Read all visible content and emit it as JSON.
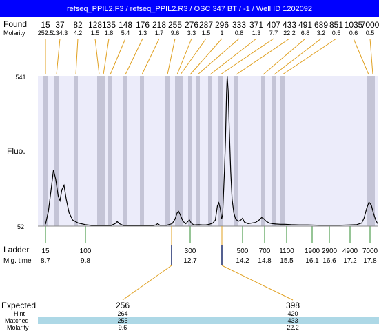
{
  "window_title": "refseq_PPIL2.F3 / refseq_PPIL2.R3 / OSC 347 BT / -1 / Well ID 1202092",
  "labels": {
    "found": "Found",
    "molarity": "Molarity",
    "fluo": "Fluo.",
    "ladder": "Ladder",
    "mig_time": "Mig. time",
    "expected": "Expected",
    "hint": "Hint",
    "matched": "Matched",
    "molarity_bottom": "Molarity"
  },
  "colors": {
    "title_bar": "#0000ff",
    "plot_bg": "#ececfa",
    "band": "#c4c4d6",
    "connector": "#e0a020",
    "ladder_tick": "#2e8b2e",
    "matched_row": "#add8e6",
    "trace": "#000000"
  },
  "chart_data": {
    "type": "line",
    "y_axis": {
      "top_label": "541",
      "bottom_label": "52",
      "ylim": [
        52,
        541
      ]
    },
    "found_peaks": [
      {
        "size": "15",
        "molarity": "252.5"
      },
      {
        "size": "37",
        "molarity": "134.3"
      },
      {
        "size": "82",
        "molarity": "4.2"
      },
      {
        "size": "128",
        "molarity": "1.5"
      },
      {
        "size": "135",
        "molarity": "1.8"
      },
      {
        "size": "148",
        "molarity": "5.4"
      },
      {
        "size": "176",
        "molarity": "1.3"
      },
      {
        "size": "218",
        "molarity": "1.7"
      },
      {
        "size": "255",
        "molarity": "9.6"
      },
      {
        "size": "276",
        "molarity": "3.3"
      },
      {
        "size": "287",
        "molarity": "1.5"
      },
      {
        "size": "296",
        "molarity": "1"
      },
      {
        "size": "333",
        "molarity": "0.8"
      },
      {
        "size": "371",
        "molarity": "1.3"
      },
      {
        "size": "407",
        "molarity": "7.7"
      },
      {
        "size": "433",
        "molarity": "22.2"
      },
      {
        "size": "491",
        "molarity": "6.8"
      },
      {
        "size": "689",
        "molarity": "3.2"
      },
      {
        "size": "851",
        "molarity": "0.5"
      },
      {
        "size": "1035",
        "molarity": "0.6"
      },
      {
        "size": "7000",
        "molarity": "0.5"
      }
    ],
    "ladder": [
      {
        "size": "15",
        "time": "8.7"
      },
      {
        "size": "100",
        "time": "9.8"
      },
      {
        "size": "300",
        "time": "12.7"
      },
      {
        "size": "500",
        "time": "14.2"
      },
      {
        "size": "700",
        "time": "14.8"
      },
      {
        "size": "1100",
        "time": "15.5"
      },
      {
        "size": "1900",
        "time": "16.1"
      },
      {
        "size": "2900",
        "time": "16.6"
      },
      {
        "size": "4900",
        "time": "17.2"
      },
      {
        "size": "7000",
        "time": "17.8"
      }
    ],
    "expected": [
      {
        "expected": "256",
        "hint": "264",
        "matched": "255",
        "molarity": "9.6"
      },
      {
        "expected": "398",
        "hint": "420",
        "matched": "433",
        "molarity": "22.2"
      }
    ],
    "trace": [
      {
        "t": 8.7,
        "f": 58
      },
      {
        "t": 8.78,
        "f": 100
      },
      {
        "t": 8.86,
        "f": 175
      },
      {
        "t": 8.92,
        "f": 235
      },
      {
        "t": 8.98,
        "f": 205
      },
      {
        "t": 9.05,
        "f": 150
      },
      {
        "t": 9.1,
        "f": 135
      },
      {
        "t": 9.15,
        "f": 170
      },
      {
        "t": 9.21,
        "f": 185
      },
      {
        "t": 9.27,
        "f": 140
      },
      {
        "t": 9.35,
        "f": 95
      },
      {
        "t": 9.45,
        "f": 72
      },
      {
        "t": 9.6,
        "f": 62
      },
      {
        "t": 9.8,
        "f": 57
      },
      {
        "t": 10.0,
        "f": 54
      },
      {
        "t": 10.3,
        "f": 53
      },
      {
        "t": 10.5,
        "f": 54
      },
      {
        "t": 10.62,
        "f": 60
      },
      {
        "t": 10.68,
        "f": 67
      },
      {
        "t": 10.74,
        "f": 60
      },
      {
        "t": 10.85,
        "f": 54
      },
      {
        "t": 11.2,
        "f": 53
      },
      {
        "t": 11.6,
        "f": 53
      },
      {
        "t": 11.75,
        "f": 56
      },
      {
        "t": 11.8,
        "f": 60
      },
      {
        "t": 11.86,
        "f": 55
      },
      {
        "t": 12.05,
        "f": 55
      },
      {
        "t": 12.2,
        "f": 60
      },
      {
        "t": 12.28,
        "f": 75
      },
      {
        "t": 12.34,
        "f": 95
      },
      {
        "t": 12.38,
        "f": 100
      },
      {
        "t": 12.43,
        "f": 88
      },
      {
        "t": 12.5,
        "f": 68
      },
      {
        "t": 12.58,
        "f": 60
      },
      {
        "t": 12.64,
        "f": 68
      },
      {
        "t": 12.68,
        "f": 72
      },
      {
        "t": 12.73,
        "f": 62
      },
      {
        "t": 12.8,
        "f": 56
      },
      {
        "t": 12.95,
        "f": 57
      },
      {
        "t": 13.05,
        "f": 56
      },
      {
        "t": 13.15,
        "f": 56
      },
      {
        "t": 13.25,
        "f": 58
      },
      {
        "t": 13.35,
        "f": 62
      },
      {
        "t": 13.42,
        "f": 72
      },
      {
        "t": 13.48,
        "f": 118
      },
      {
        "t": 13.52,
        "f": 128
      },
      {
        "t": 13.56,
        "f": 110
      },
      {
        "t": 13.6,
        "f": 75
      },
      {
        "t": 13.63,
        "f": 90
      },
      {
        "t": 13.68,
        "f": 230
      },
      {
        "t": 13.71,
        "f": 330
      },
      {
        "t": 13.74,
        "f": 480
      },
      {
        "t": 13.76,
        "f": 541
      },
      {
        "t": 13.79,
        "f": 490
      },
      {
        "t": 13.82,
        "f": 370
      },
      {
        "t": 13.86,
        "f": 230
      },
      {
        "t": 13.9,
        "f": 140
      },
      {
        "t": 13.95,
        "f": 95
      },
      {
        "t": 14.0,
        "f": 75
      },
      {
        "t": 14.08,
        "f": 68
      },
      {
        "t": 14.15,
        "f": 72
      },
      {
        "t": 14.2,
        "f": 78
      },
      {
        "t": 14.25,
        "f": 65
      },
      {
        "t": 14.35,
        "f": 60
      },
      {
        "t": 14.45,
        "f": 62
      },
      {
        "t": 14.55,
        "f": 64
      },
      {
        "t": 14.65,
        "f": 72
      },
      {
        "t": 14.72,
        "f": 80
      },
      {
        "t": 14.78,
        "f": 76
      },
      {
        "t": 14.85,
        "f": 68
      },
      {
        "t": 14.95,
        "f": 62
      },
      {
        "t": 15.05,
        "f": 60
      },
      {
        "t": 15.15,
        "f": 59
      },
      {
        "t": 15.3,
        "f": 58
      },
      {
        "t": 15.45,
        "f": 58
      },
      {
        "t": 15.6,
        "f": 57
      },
      {
        "t": 15.8,
        "f": 56
      },
      {
        "t": 16.0,
        "f": 56
      },
      {
        "t": 16.3,
        "f": 55
      },
      {
        "t": 16.6,
        "f": 55
      },
      {
        "t": 16.9,
        "f": 55
      },
      {
        "t": 17.2,
        "f": 56
      },
      {
        "t": 17.4,
        "f": 57
      },
      {
        "t": 17.55,
        "f": 62
      },
      {
        "t": 17.62,
        "f": 78
      },
      {
        "t": 17.7,
        "f": 110
      },
      {
        "t": 17.77,
        "f": 130
      },
      {
        "t": 17.84,
        "f": 120
      },
      {
        "t": 17.9,
        "f": 95
      },
      {
        "t": 17.97,
        "f": 72
      },
      {
        "t": 18.03,
        "f": 60
      }
    ]
  }
}
